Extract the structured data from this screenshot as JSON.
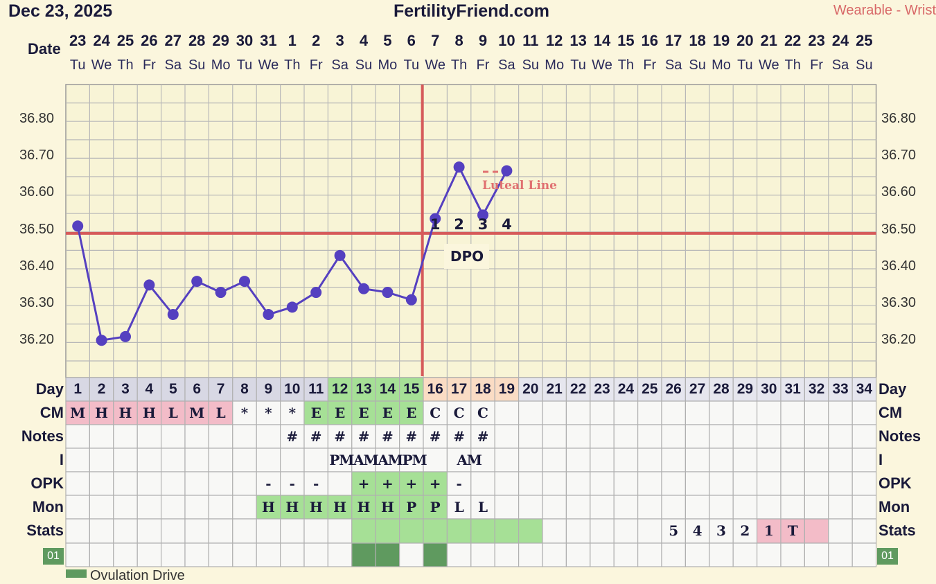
{
  "header": {
    "date": "Dec 23, 2025",
    "site": "FertilityFriend.com",
    "source": "Wearable - Wrist"
  },
  "dates": [
    "23",
    "24",
    "25",
    "26",
    "27",
    "28",
    "29",
    "30",
    "31",
    "1",
    "2",
    "3",
    "4",
    "5",
    "6",
    "7",
    "8",
    "9",
    "10",
    "11",
    "12",
    "13",
    "14",
    "15",
    "16",
    "17",
    "18",
    "19",
    "20",
    "21",
    "22",
    "23",
    "24",
    "25"
  ],
  "dows": [
    "Tu",
    "We",
    "Th",
    "Fr",
    "Sa",
    "Su",
    "Mo",
    "Tu",
    "We",
    "Th",
    "Fr",
    "Sa",
    "Su",
    "Mo",
    "Tu",
    "We",
    "Th",
    "Fr",
    "Sa",
    "Su",
    "Mo",
    "Tu",
    "We",
    "Th",
    "Fr",
    "Sa",
    "Su",
    "Mo",
    "Tu",
    "We",
    "Th",
    "Fr",
    "Sa",
    "Su"
  ],
  "labels": {
    "date": "Date",
    "day": "Day",
    "cm": "CM",
    "notes": "Notes",
    "i": "I",
    "opk": "OPK",
    "mon": "Mon",
    "stats": "Stats",
    "tag": "01",
    "dpo": "DPO",
    "luteal": "Luteal Line",
    "legend_partial": "Ovulation Drive"
  },
  "y_ticks": [
    "36.80",
    "36.70",
    "36.60",
    "36.50",
    "36.40",
    "36.30",
    "36.20"
  ],
  "chart_data": {
    "type": "line",
    "x": [
      1,
      2,
      3,
      4,
      5,
      6,
      7,
      8,
      9,
      10,
      11,
      12,
      13,
      14,
      15,
      16,
      17,
      18,
      19
    ],
    "values": [
      36.51,
      36.2,
      36.21,
      36.35,
      36.27,
      36.36,
      36.33,
      36.36,
      36.27,
      36.29,
      36.33,
      36.43,
      36.34,
      36.33,
      36.31,
      36.53,
      36.67,
      36.54,
      36.66
    ],
    "ylim": [
      36.1,
      36.9
    ],
    "coverline": 36.49,
    "ovulation_day": 15,
    "dpo_labels": [
      "1",
      "2",
      "3",
      "4"
    ],
    "colors": {
      "line": "#5540c0",
      "coverline": "#d65a5a",
      "grid": "#b8b8b8"
    }
  },
  "day_numbers": [
    "1",
    "2",
    "3",
    "4",
    "5",
    "6",
    "7",
    "8",
    "9",
    "10",
    "11",
    "12",
    "13",
    "14",
    "15",
    "16",
    "17",
    "18",
    "19",
    "20",
    "21",
    "22",
    "23",
    "24",
    "25",
    "26",
    "27",
    "28",
    "29",
    "30",
    "31",
    "32",
    "33",
    "34"
  ],
  "cm": [
    "M",
    "H",
    "H",
    "H",
    "L",
    "M",
    "L",
    "*",
    "*",
    "*",
    "E",
    "E",
    "E",
    "E",
    "E",
    "C",
    "C",
    "C",
    "",
    "",
    "",
    "",
    "",
    "",
    "",
    "",
    "",
    "",
    "",
    "",
    "",
    "",
    "",
    ""
  ],
  "notes": [
    "",
    "",
    "",
    "",
    "",
    "",
    "",
    "",
    "",
    "#",
    "#",
    "#",
    "#",
    "#",
    "#",
    "#",
    "#",
    "#",
    "",
    "",
    "",
    "",
    "",
    "",
    "",
    "",
    "",
    "",
    "",
    "",
    "",
    "",
    "",
    ""
  ],
  "intercourse": [
    {
      "text": "PMAMAMPM"
    },
    {
      "text": "AM"
    }
  ],
  "opk": [
    "",
    "",
    "",
    "",
    "",
    "",
    "",
    "",
    "-",
    "-",
    "-",
    "",
    "+",
    "+",
    "+",
    "+",
    "-",
    "",
    "",
    "",
    "",
    "",
    "",
    "",
    "",
    "",
    "",
    "",
    "",
    "",
    "",
    "",
    "",
    ""
  ],
  "mon": [
    "",
    "",
    "",
    "",
    "",
    "",
    "",
    "",
    "H",
    "H",
    "H",
    "H",
    "H",
    "H",
    "P",
    "P",
    "L",
    "L",
    "",
    "",
    "",
    "",
    "",
    "",
    "",
    "",
    "",
    "",
    "",
    "",
    "",
    "",
    "",
    ""
  ],
  "stats": [
    "",
    "",
    "",
    "",
    "",
    "",
    "",
    "",
    "",
    "",
    "",
    "",
    "",
    "",
    "",
    "",
    "",
    "",
    "",
    "",
    "",
    "",
    "",
    "",
    "",
    "5",
    "4",
    "3",
    "2",
    "1",
    "T",
    "",
    "",
    ""
  ]
}
